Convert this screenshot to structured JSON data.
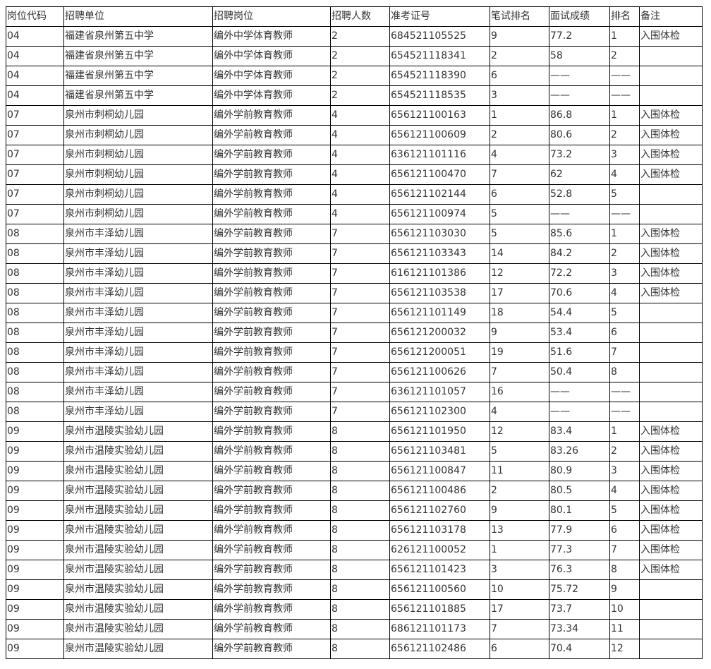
{
  "headers": [
    "岗位代码",
    "招聘单位",
    "招聘岗位",
    "招聘人数",
    "准考证号",
    "笔试排名",
    "面试成绩",
    "排名",
    "备注"
  ],
  "rows": [
    [
      "04",
      "福建省泉州第五中学",
      "编外中学体育教师",
      "2",
      "684521105525",
      "9",
      "77.2",
      "1",
      "入围体检"
    ],
    [
      "04",
      "福建省泉州第五中学",
      "编外中学体育教师",
      "2",
      "654521118341",
      "2",
      "58",
      "2",
      ""
    ],
    [
      "04",
      "福建省泉州第五中学",
      "编外中学体育教师",
      "2",
      "654521118390",
      "6",
      "——",
      "——",
      ""
    ],
    [
      "04",
      "福建省泉州第五中学",
      "编外中学体育教师",
      "2",
      "654521118535",
      "3",
      "——",
      "——",
      ""
    ],
    [
      "07",
      "泉州市刺桐幼儿园",
      "编外学前教育教师",
      "4",
      "656121100163",
      "1",
      "86.8",
      "1",
      "入围体检"
    ],
    [
      "07",
      "泉州市刺桐幼儿园",
      "编外学前教育教师",
      "4",
      "656121100609",
      "2",
      "80.6",
      "2",
      "入围体检"
    ],
    [
      "07",
      "泉州市刺桐幼儿园",
      "编外学前教育教师",
      "4",
      "636121101116",
      "4",
      "73.2",
      "3",
      "入围体检"
    ],
    [
      "07",
      "泉州市刺桐幼儿园",
      "编外学前教育教师",
      "4",
      "656121100470",
      "7",
      "62",
      "4",
      "入围体检"
    ],
    [
      "07",
      "泉州市刺桐幼儿园",
      "编外学前教育教师",
      "4",
      "656121102144",
      "6",
      "52.8",
      "5",
      ""
    ],
    [
      "07",
      "泉州市刺桐幼儿园",
      "编外学前教育教师",
      "4",
      "656121100974",
      "5",
      "——",
      "——",
      ""
    ],
    [
      "08",
      "泉州市丰泽幼儿园",
      "编外学前教育教师",
      "7",
      "656121103030",
      "5",
      "85.6",
      "1",
      "入围体检"
    ],
    [
      "08",
      "泉州市丰泽幼儿园",
      "编外学前教育教师",
      "7",
      "656121103343",
      "14",
      "84.2",
      "2",
      "入围体检"
    ],
    [
      "08",
      "泉州市丰泽幼儿园",
      "编外学前教育教师",
      "7",
      "616121101386",
      "12",
      "72.2",
      "3",
      "入围体检"
    ],
    [
      "08",
      "泉州市丰泽幼儿园",
      "编外学前教育教师",
      "7",
      "656121103538",
      "17",
      "70.6",
      "4",
      "入围体检"
    ],
    [
      "08",
      "泉州市丰泽幼儿园",
      "编外学前教育教师",
      "7",
      "656121101149",
      "18",
      "54.4",
      "5",
      ""
    ],
    [
      "08",
      "泉州市丰泽幼儿园",
      "编外学前教育教师",
      "7",
      "656121200032",
      "9",
      "53.4",
      "6",
      ""
    ],
    [
      "08",
      "泉州市丰泽幼儿园",
      "编外学前教育教师",
      "7",
      "656121200051",
      "19",
      "51.6",
      "7",
      ""
    ],
    [
      "08",
      "泉州市丰泽幼儿园",
      "编外学前教育教师",
      "7",
      "656121100626",
      "7",
      "50.4",
      "8",
      ""
    ],
    [
      "08",
      "泉州市丰泽幼儿园",
      "编外学前教育教师",
      "7",
      "636121101057",
      "16",
      "——",
      "——",
      ""
    ],
    [
      "08",
      "泉州市丰泽幼儿园",
      "编外学前教育教师",
      "7",
      "656121102300",
      "4",
      "——",
      "——",
      ""
    ],
    [
      "09",
      "泉州市温陵实验幼儿园",
      "编外学前教育教师",
      "8",
      "656121101950",
      "12",
      "83.4",
      "1",
      "入围体检"
    ],
    [
      "09",
      "泉州市温陵实验幼儿园",
      "编外学前教育教师",
      "8",
      "656121103481",
      "5",
      "83.26",
      "2",
      "入围体检"
    ],
    [
      "09",
      "泉州市温陵实验幼儿园",
      "编外学前教育教师",
      "8",
      "656121100847",
      "11",
      "80.9",
      "3",
      "入围体检"
    ],
    [
      "09",
      "泉州市温陵实验幼儿园",
      "编外学前教育教师",
      "8",
      "656121100486",
      "2",
      "80.5",
      "4",
      "入围体检"
    ],
    [
      "09",
      "泉州市温陵实验幼儿园",
      "编外学前教育教师",
      "8",
      "656121102760",
      "9",
      "80.1",
      "5",
      "入围体检"
    ],
    [
      "09",
      "泉州市温陵实验幼儿园",
      "编外学前教育教师",
      "8",
      "656121103178",
      "13",
      "77.9",
      "6",
      "入围体检"
    ],
    [
      "09",
      "泉州市温陵实验幼儿园",
      "编外学前教育教师",
      "8",
      "626121100052",
      "1",
      "77.3",
      "7",
      "入围体检"
    ],
    [
      "09",
      "泉州市温陵实验幼儿园",
      "编外学前教育教师",
      "8",
      "656121101423",
      "3",
      "76.3",
      "8",
      "入围体检"
    ],
    [
      "09",
      "泉州市温陵实验幼儿园",
      "编外学前教育教师",
      "8",
      "656121100560",
      "10",
      "75.72",
      "9",
      ""
    ],
    [
      "09",
      "泉州市温陵实验幼儿园",
      "编外学前教育教师",
      "8",
      "656121101885",
      "17",
      "73.7",
      "10",
      ""
    ],
    [
      "09",
      "泉州市温陵实验幼儿园",
      "编外学前教育教师",
      "8",
      "686121101173",
      "7",
      "73.34",
      "11",
      ""
    ],
    [
      "09",
      "泉州市温陵实验幼儿园",
      "编外学前教育教师",
      "8",
      "656121102486",
      "6",
      "70.4",
      "12",
      ""
    ]
  ]
}
